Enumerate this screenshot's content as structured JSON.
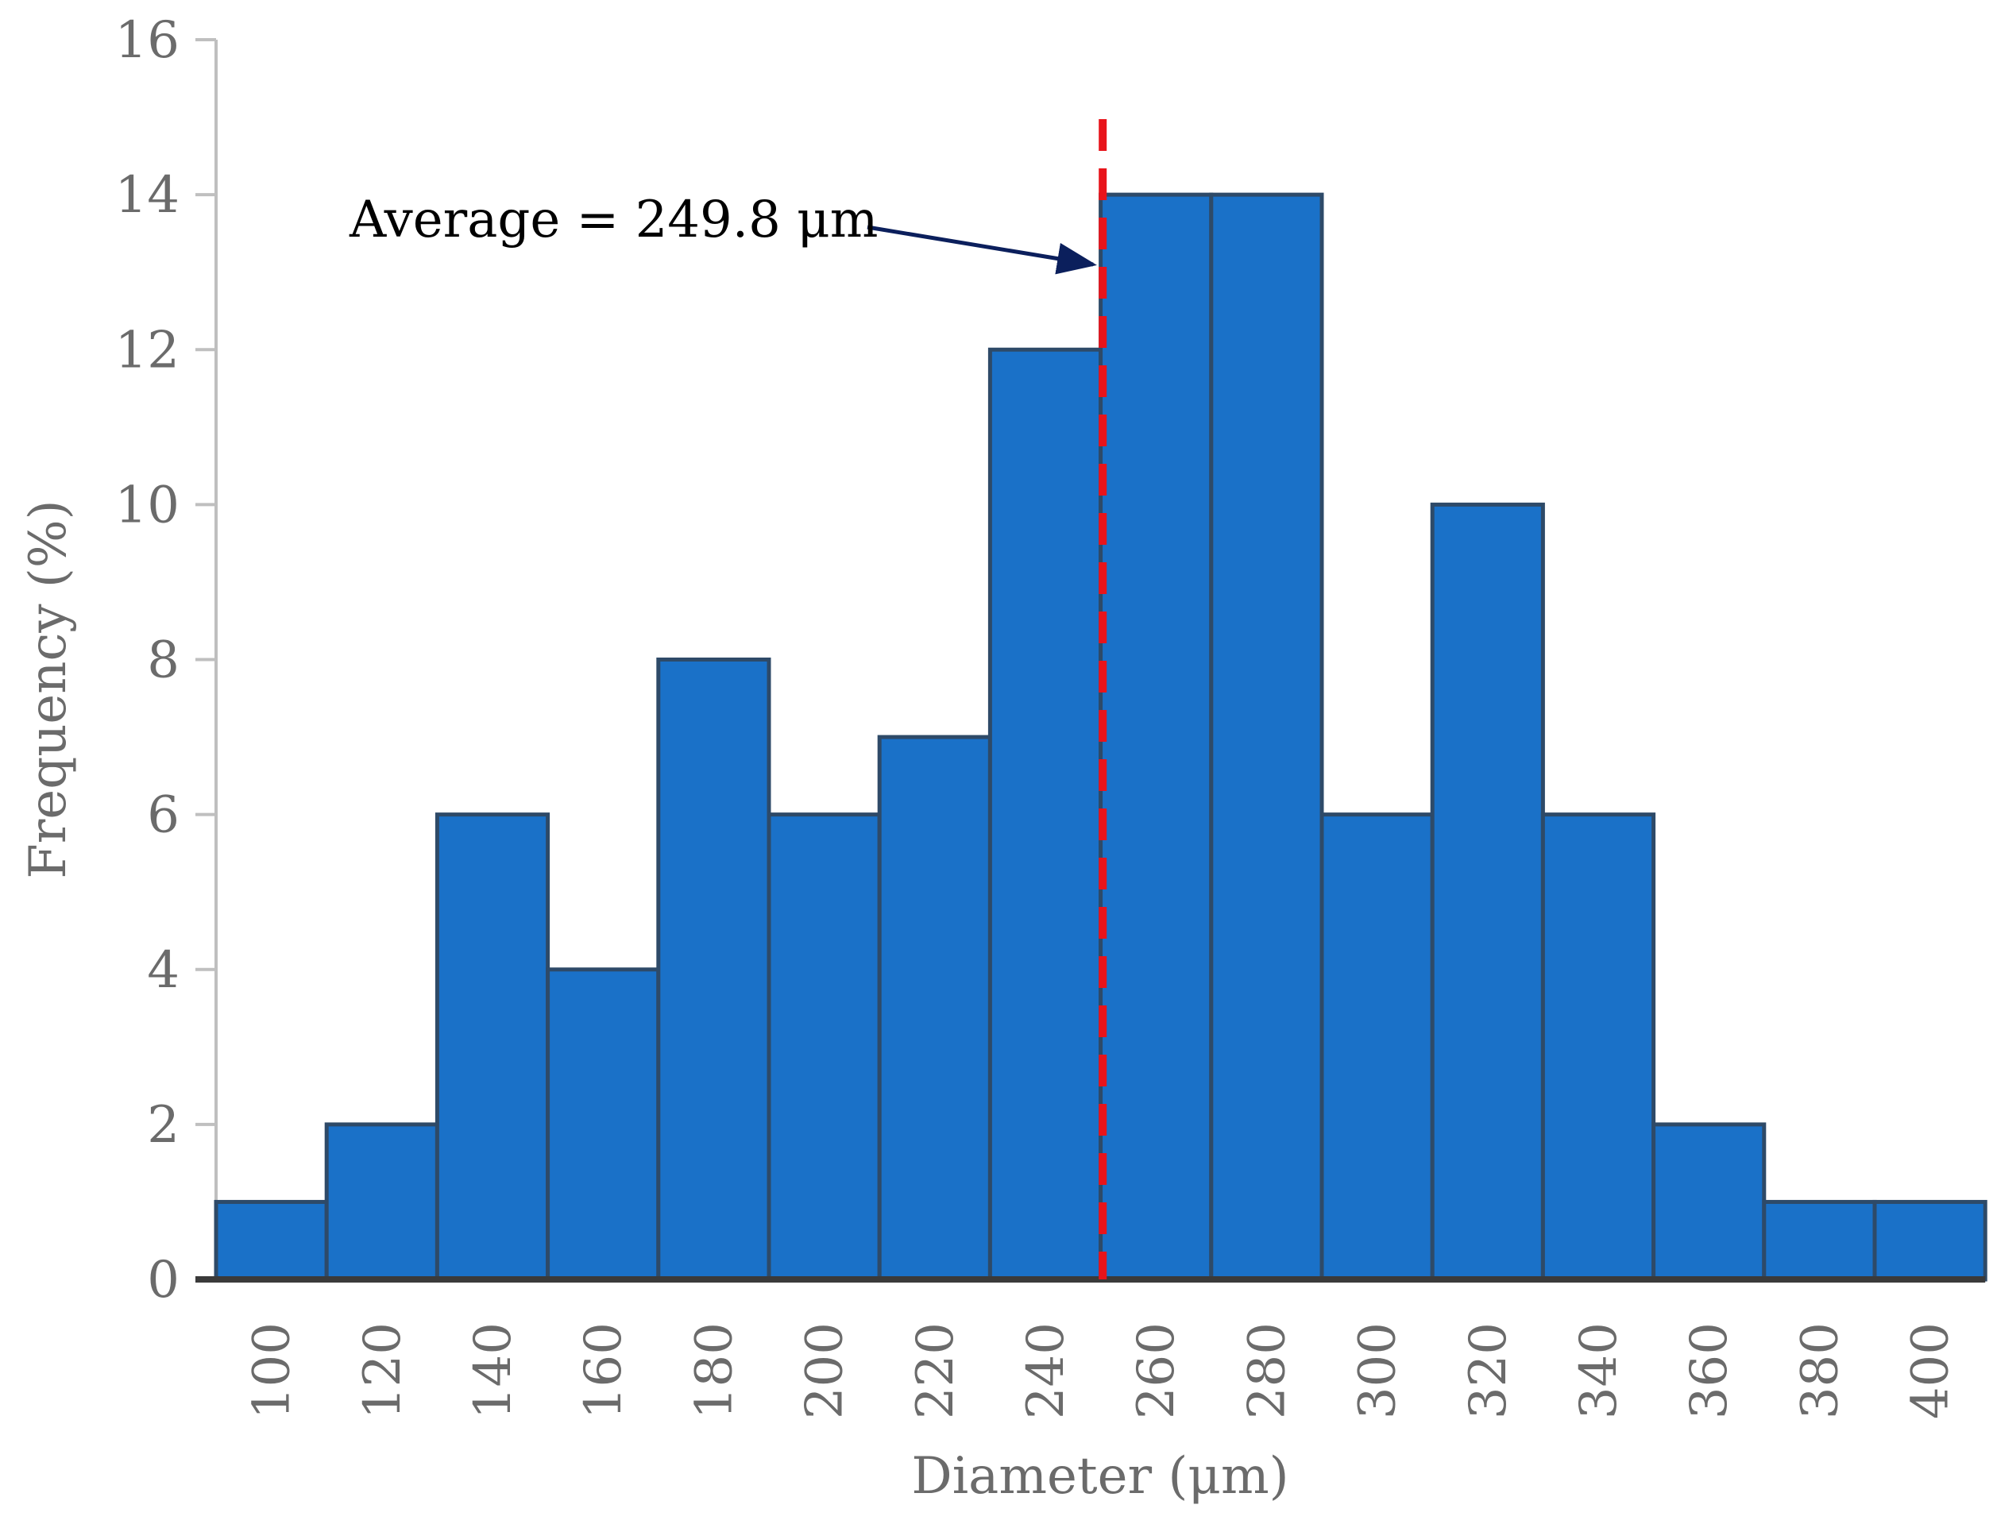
{
  "chart_data": {
    "type": "bar",
    "subtype": "histogram",
    "categories": [
      "100",
      "120",
      "140",
      "160",
      "180",
      "200",
      "220",
      "240",
      "260",
      "280",
      "300",
      "320",
      "340",
      "360",
      "380",
      "400"
    ],
    "values": [
      1,
      2,
      6,
      4,
      8,
      6,
      7,
      12,
      14,
      14,
      6,
      10,
      6,
      2,
      1,
      1
    ],
    "title": "",
    "xlabel": "Diameter (μm)",
    "ylabel": "Frequency (%)",
    "ylim": [
      0,
      16
    ],
    "yticks": [
      0,
      2,
      4,
      6,
      8,
      10,
      12,
      14,
      16
    ],
    "grid": false,
    "legend": "none",
    "annotation": {
      "text": "Average = 249.8 μm",
      "value": 249.8,
      "line_style": "dashed",
      "line_color": "#e8141b",
      "arrow_color": "#0b1f5c"
    },
    "colors": {
      "bar_fill": "#1a71c8",
      "bar_edge": "#2e4a68",
      "axis": "#bfbfbf",
      "baseline": "#3a3a3a",
      "text": "#6b6b6b"
    }
  }
}
